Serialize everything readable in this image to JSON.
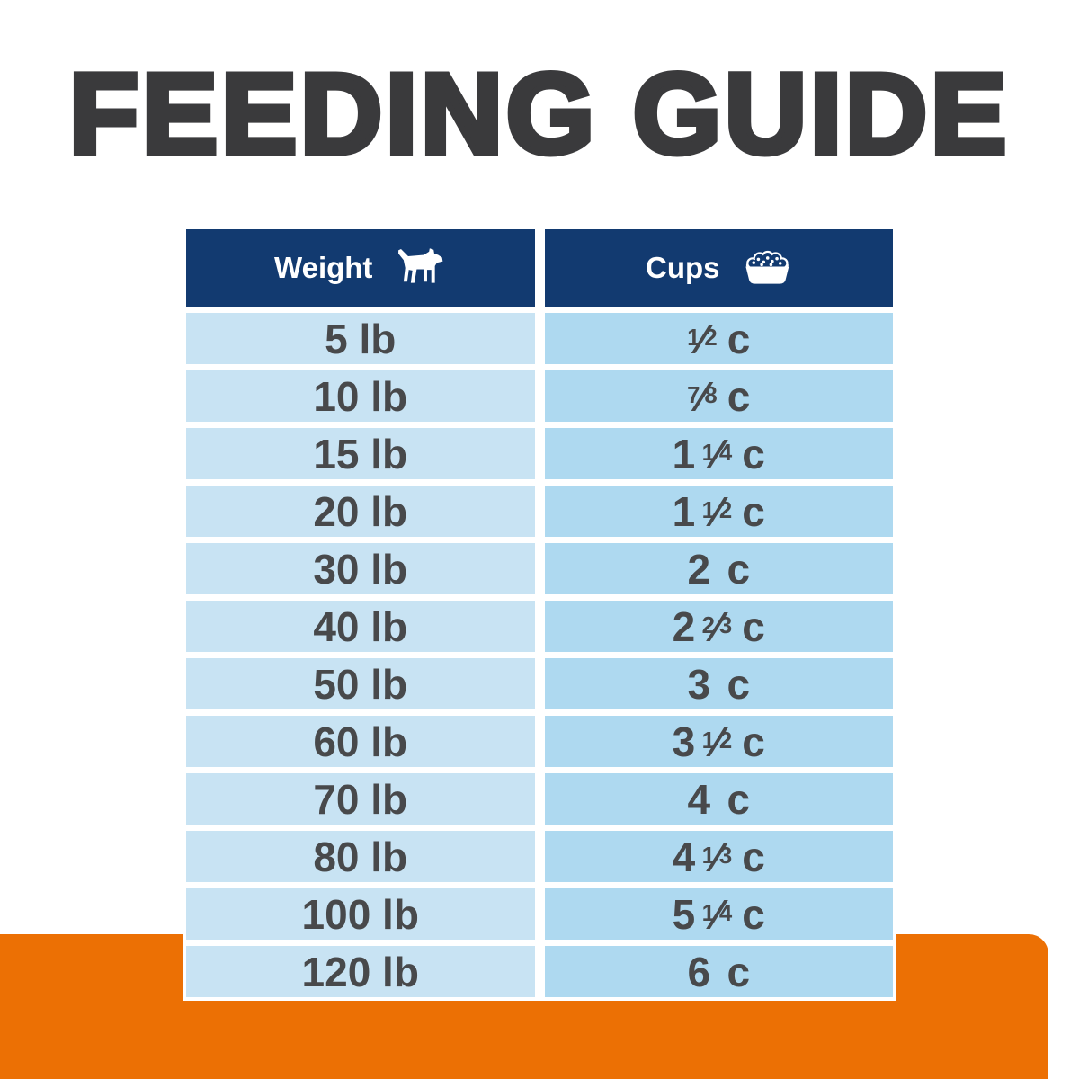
{
  "title": {
    "text": "FEEDING GUIDE",
    "color": "#3A3A3C"
  },
  "table": {
    "header": {
      "weight_label": "Weight",
      "weight_icon": "dog-icon",
      "cups_label": "Cups",
      "cups_icon": "food-bowl-icon",
      "bg": "#123A70",
      "text_color": "#FFFFFF"
    },
    "colors": {
      "weight_cell_bg": "#C8E3F3",
      "cups_cell_bg": "#AED9F0",
      "cell_text": "#48494B"
    },
    "rows": [
      {
        "weight": "5 lb",
        "cups_text": "½ c",
        "cups_whole": "",
        "cups_num": "1",
        "cups_den": "2",
        "cups_unit": "c"
      },
      {
        "weight": "10 lb",
        "cups_text": "⅞ c",
        "cups_whole": "",
        "cups_num": "7",
        "cups_den": "8",
        "cups_unit": "c"
      },
      {
        "weight": "15 lb",
        "cups_text": "1 ¼ c",
        "cups_whole": "1",
        "cups_num": "1",
        "cups_den": "4",
        "cups_unit": "c"
      },
      {
        "weight": "20 lb",
        "cups_text": "1 ½ c",
        "cups_whole": "1",
        "cups_num": "1",
        "cups_den": "2",
        "cups_unit": "c"
      },
      {
        "weight": "30 lb",
        "cups_text": "2 c",
        "cups_whole": "2",
        "cups_num": "",
        "cups_den": "",
        "cups_unit": "c"
      },
      {
        "weight": "40 lb",
        "cups_text": "2 ⅔ c",
        "cups_whole": "2",
        "cups_num": "2",
        "cups_den": "3",
        "cups_unit": "c"
      },
      {
        "weight": "50 lb",
        "cups_text": "3 c",
        "cups_whole": "3",
        "cups_num": "",
        "cups_den": "",
        "cups_unit": "c"
      },
      {
        "weight": "60 lb",
        "cups_text": "3 ½ c",
        "cups_whole": "3",
        "cups_num": "1",
        "cups_den": "2",
        "cups_unit": "c"
      },
      {
        "weight": "70 lb",
        "cups_text": "4 c",
        "cups_whole": "4",
        "cups_num": "",
        "cups_den": "",
        "cups_unit": "c"
      },
      {
        "weight": "80 lb",
        "cups_text": "4 ⅓ c",
        "cups_whole": "4",
        "cups_num": "1",
        "cups_den": "3",
        "cups_unit": "c"
      },
      {
        "weight": "100 lb",
        "cups_text": "5 ¼ c",
        "cups_whole": "5",
        "cups_num": "1",
        "cups_den": "4",
        "cups_unit": "c"
      },
      {
        "weight": "120 lb",
        "cups_text": "6 c",
        "cups_whole": "6",
        "cups_num": "",
        "cups_den": "",
        "cups_unit": "c"
      }
    ]
  },
  "footer_band": {
    "color": "#EC7004"
  },
  "chart_data": {
    "type": "table",
    "title": "FEEDING GUIDE",
    "columns": [
      "Weight",
      "Cups"
    ],
    "rows": [
      [
        "5 lb",
        "½ c"
      ],
      [
        "10 lb",
        "⅞ c"
      ],
      [
        "15 lb",
        "1 ¼ c"
      ],
      [
        "20 lb",
        "1 ½ c"
      ],
      [
        "30 lb",
        "2 c"
      ],
      [
        "40 lb",
        "2 ⅔ c"
      ],
      [
        "50 lb",
        "3 c"
      ],
      [
        "60 lb",
        "3 ½ c"
      ],
      [
        "70 lb",
        "4 c"
      ],
      [
        "80 lb",
        "4 ⅓ c"
      ],
      [
        "100 lb",
        "5 ¼ c"
      ],
      [
        "120 lb",
        "6 c"
      ]
    ],
    "weights_lb": [
      5,
      10,
      15,
      20,
      30,
      40,
      50,
      60,
      70,
      80,
      100,
      120
    ],
    "cups": [
      0.5,
      0.875,
      1.25,
      1.5,
      2,
      2.667,
      3,
      3.5,
      4,
      4.333,
      5.25,
      6
    ]
  }
}
